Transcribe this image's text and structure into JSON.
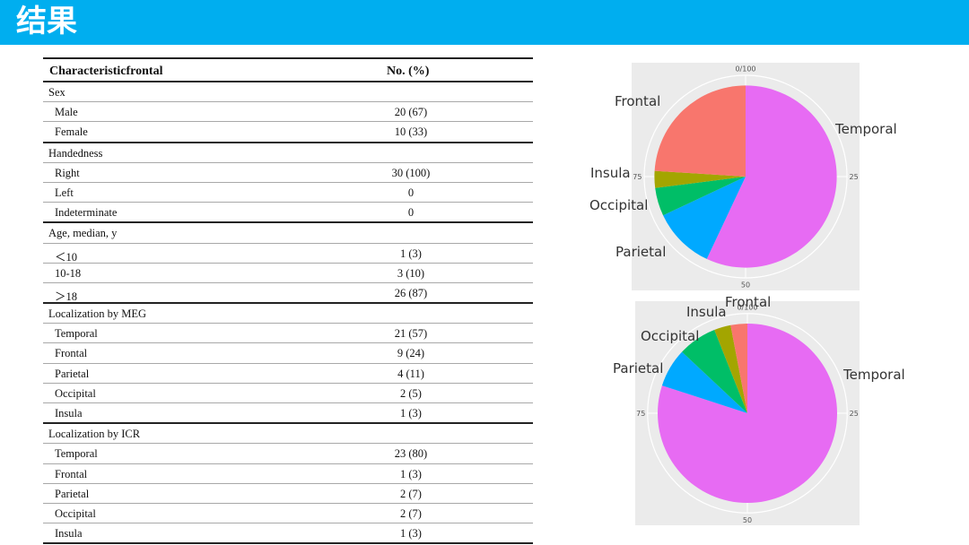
{
  "header": {
    "title": "结果"
  },
  "table": {
    "col1": "Characteristicfrontal",
    "col2": "No. (%)",
    "rows": [
      {
        "label": "Sex",
        "value": "",
        "group": true
      },
      {
        "label": "Male",
        "value": "20 (67)"
      },
      {
        "label": "Female",
        "value": "10 (33)",
        "last": true
      },
      {
        "label": "Handedness",
        "value": "",
        "group": true
      },
      {
        "label": "Right",
        "value": "30 (100)"
      },
      {
        "label": "Left",
        "value": "0"
      },
      {
        "label": "Indeterminate",
        "value": "0",
        "last": true
      },
      {
        "label": "Age, median, y",
        "value": "",
        "group": true
      },
      {
        "label": "＜10",
        "value": "1 (3)"
      },
      {
        "label": "10-18",
        "value": "3 (10)"
      },
      {
        "label": "＞18",
        "value": "26 (87)",
        "last": true
      },
      {
        "label": "Localization by MEG",
        "value": "",
        "group": true
      },
      {
        "label": "Temporal",
        "value": "21 (57)"
      },
      {
        "label": "Frontal",
        "value": "9 (24)"
      },
      {
        "label": "Parietal",
        "value": "4 (11)"
      },
      {
        "label": "Occipital",
        "value": "2 (5)"
      },
      {
        "label": "Insula",
        "value": "1 (3)",
        "last": true
      },
      {
        "label": "Localization by ICR",
        "value": "",
        "group": true
      },
      {
        "label": "Temporal",
        "value": "23 (80)"
      },
      {
        "label": "Frontal",
        "value": "1 (3)"
      },
      {
        "label": "Parietal",
        "value": "2 (7)"
      },
      {
        "label": "Occipital",
        "value": "2 (7)"
      },
      {
        "label": "Insula",
        "value": "1 (3)",
        "last": true
      }
    ]
  },
  "chart_data": [
    {
      "type": "pie",
      "ticks": [
        "0/100",
        "25",
        "50",
        "75"
      ],
      "slices": [
        {
          "label": "Temporal",
          "value": 57,
          "color": "#e76bf3"
        },
        {
          "label": "Parietal",
          "value": 11,
          "color": "#00a9ff"
        },
        {
          "label": "Occipital",
          "value": 5,
          "color": "#00be67"
        },
        {
          "label": "Insula",
          "value": 3,
          "color": "#a3a500"
        },
        {
          "label": "Frontal",
          "value": 24,
          "color": "#f8766d"
        }
      ]
    },
    {
      "type": "pie",
      "ticks": [
        "0/100",
        "25",
        "50",
        "75"
      ],
      "slices": [
        {
          "label": "Temporal",
          "value": 80,
          "color": "#e76bf3"
        },
        {
          "label": "Parietal",
          "value": 7,
          "color": "#00a9ff"
        },
        {
          "label": "Occipital",
          "value": 7,
          "color": "#00be67"
        },
        {
          "label": "Insula",
          "value": 3,
          "color": "#a3a500"
        },
        {
          "label": "Frontal",
          "value": 3,
          "color": "#f8766d"
        }
      ]
    }
  ]
}
